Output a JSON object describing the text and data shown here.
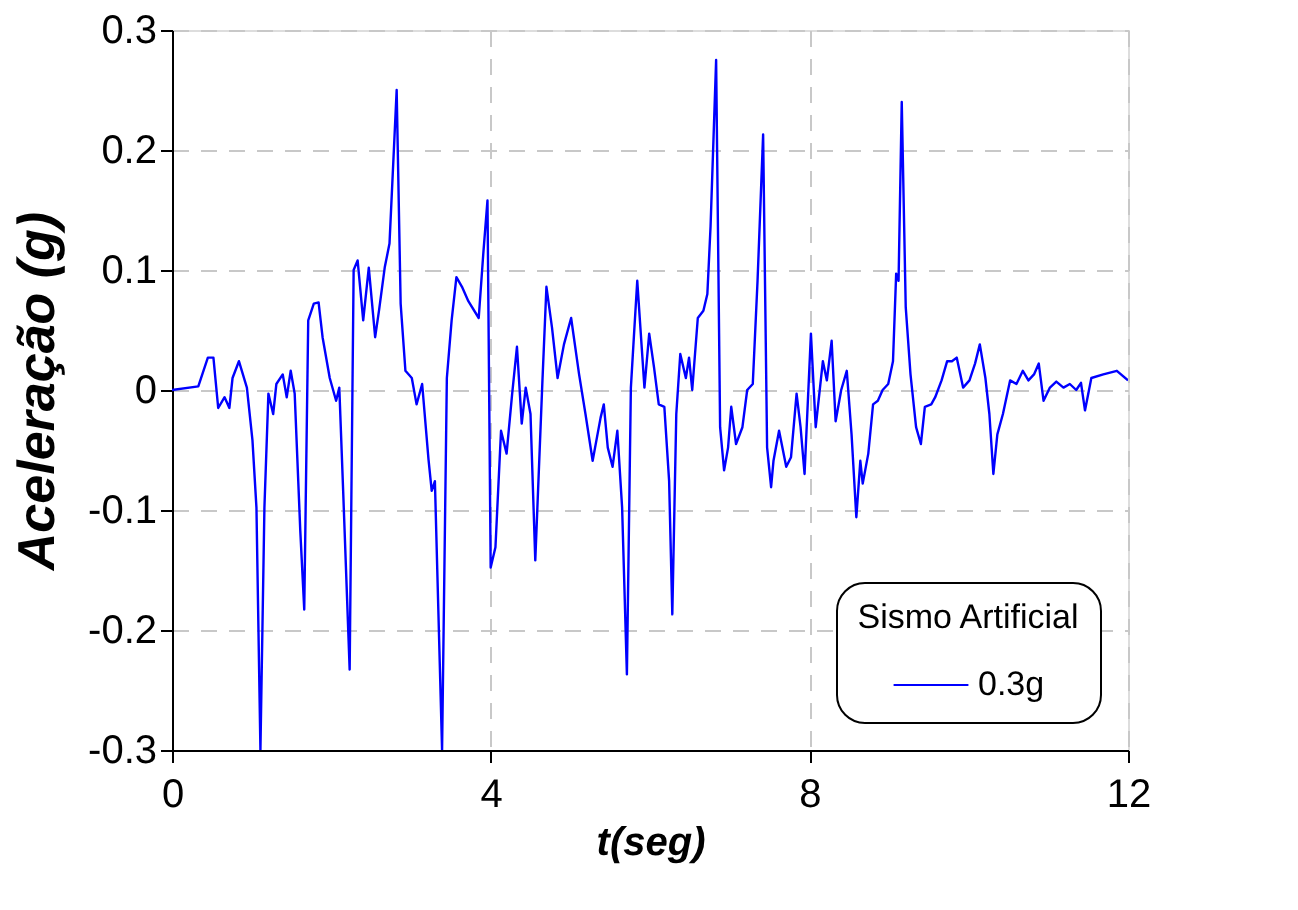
{
  "chart_data": {
    "type": "line",
    "xlabel": "t(seg)",
    "ylabel": "Aceleração (g)",
    "legend_title": "Sismo Artificial",
    "legend": "bottom right",
    "grid": true,
    "line_style": "solid",
    "marker": "none",
    "xlim": [
      0,
      12
    ],
    "xticks": [
      0,
      4,
      8,
      12
    ],
    "ylim": [
      -0.3,
      0.3
    ],
    "yticks": [
      -0.3,
      -0.2,
      -0.1,
      0,
      0.1,
      0.2,
      0.3
    ],
    "x": [
      0,
      0.33,
      0.45,
      0.52,
      0.58,
      0.66,
      0.72,
      0.76,
      0.84,
      0.94,
      1.01,
      1.06,
      1.11,
      1.16,
      1.21,
      1.27,
      1.31,
      1.39,
      1.44,
      1.49,
      1.54,
      1.61,
      1.66,
      1.71,
      1.78,
      1.84,
      1.89,
      1.98,
      2.06,
      2.1,
      2.15,
      2.23,
      2.28,
      2.33,
      2.4,
      2.47,
      2.55,
      2.6,
      2.67,
      2.73,
      2.82,
      2.87,
      2.93,
      3.01,
      3.07,
      3.14,
      3.22,
      3.26,
      3.3,
      3.39,
      3.45,
      3.51,
      3.57,
      3.64,
      3.72,
      3.85,
      3.91,
      3.96,
      4.0,
      4.06,
      4.13,
      4.2,
      4.27,
      4.33,
      4.39,
      4.44,
      4.5,
      4.56,
      4.65,
      4.7,
      4.77,
      4.84,
      4.92,
      5.01,
      5.11,
      5.19,
      5.28,
      5.38,
      5.42,
      5.47,
      5.53,
      5.59,
      5.65,
      5.71,
      5.76,
      5.8,
      5.84,
      5.93,
      5.99,
      6.05,
      6.11,
      6.18,
      6.24,
      6.28,
      6.33,
      6.38,
      6.45,
      6.49,
      6.53,
      6.6,
      6.67,
      6.72,
      6.76,
      6.83,
      6.88,
      6.93,
      6.98,
      7.02,
      7.08,
      7.16,
      7.22,
      7.29,
      7.35,
      7.42,
      7.47,
      7.52,
      7.55,
      7.62,
      7.71,
      7.77,
      7.84,
      7.89,
      7.94,
      8.02,
      8.08,
      8.17,
      8.22,
      8.28,
      8.33,
      8.4,
      8.47,
      8.53,
      8.59,
      8.64,
      8.67,
      8.74,
      8.8,
      8.86,
      8.92,
      8.99,
      9.05,
      9.09,
      9.12,
      9.16,
      9.21,
      9.27,
      9.34,
      9.4,
      9.45,
      9.53,
      9.58,
      9.66,
      9.73,
      9.79,
      9.85,
      9.93,
      10.01,
      10.08,
      10.14,
      10.21,
      10.26,
      10.31,
      10.36,
      10.43,
      10.52,
      10.6,
      10.68,
      10.75,
      10.82,
      10.88,
      10.94,
      11.02,
      11.1,
      11.19,
      11.27,
      11.35,
      11.41,
      11.46,
      11.54,
      11.69,
      11.86,
      12.0
    ],
    "series": [
      {
        "name": "0.3g",
        "color": "#0000ff",
        "values": [
          0,
          0.003,
          0.027,
          0.027,
          -0.015,
          -0.006,
          -0.015,
          0.01,
          0.024,
          0.002,
          -0.042,
          -0.098,
          -0.3,
          -0.098,
          -0.003,
          -0.02,
          0.005,
          0.013,
          -0.006,
          0.016,
          -0.003,
          -0.117,
          -0.183,
          0.058,
          0.072,
          0.073,
          0.044,
          0.01,
          -0.009,
          0.002,
          -0.087,
          -0.233,
          0.1,
          0.108,
          0.058,
          0.102,
          0.044,
          0.067,
          0.102,
          0.122,
          0.25,
          0.072,
          0.016,
          0.01,
          -0.012,
          0.005,
          -0.058,
          -0.084,
          -0.076,
          -0.3,
          0.01,
          0.058,
          0.094,
          0.086,
          0.074,
          0.06,
          0.116,
          0.158,
          -0.148,
          -0.131,
          -0.034,
          -0.053,
          -0.003,
          0.036,
          -0.028,
          0.002,
          -0.02,
          -0.142,
          0.008,
          0.086,
          0.052,
          0.01,
          0.038,
          0.06,
          0.013,
          -0.02,
          -0.059,
          -0.023,
          -0.012,
          -0.048,
          -0.064,
          -0.034,
          -0.098,
          -0.237,
          0.002,
          0.047,
          0.091,
          0.002,
          0.047,
          0.019,
          -0.012,
          -0.014,
          -0.076,
          -0.187,
          -0.02,
          0.03,
          0.01,
          0.027,
          0,
          0.06,
          0.066,
          0.08,
          0.136,
          0.275,
          -0.031,
          -0.067,
          -0.048,
          -0.014,
          -0.045,
          -0.031,
          0,
          0.005,
          0.091,
          0.213,
          -0.048,
          -0.081,
          -0.059,
          -0.034,
          -0.064,
          -0.056,
          -0.003,
          -0.031,
          -0.07,
          0.047,
          -0.031,
          0.024,
          0.008,
          0.041,
          -0.026,
          0,
          0.016,
          -0.037,
          -0.106,
          -0.059,
          -0.078,
          -0.053,
          -0.012,
          -0.009,
          0,
          0.005,
          0.024,
          0.097,
          0.091,
          0.24,
          0.069,
          0.013,
          -0.031,
          -0.045,
          -0.014,
          -0.012,
          -0.006,
          0.008,
          0.024,
          0.024,
          0.027,
          0.002,
          0.008,
          0.022,
          0.038,
          0.01,
          -0.02,
          -0.07,
          -0.037,
          -0.02,
          0.008,
          0.005,
          0.016,
          0.008,
          0.013,
          0.022,
          -0.009,
          0.002,
          0.007,
          0.002,
          0.005,
          0,
          0.006,
          -0.017,
          0.01,
          0.013,
          0.016,
          0.008
        ]
      }
    ]
  }
}
